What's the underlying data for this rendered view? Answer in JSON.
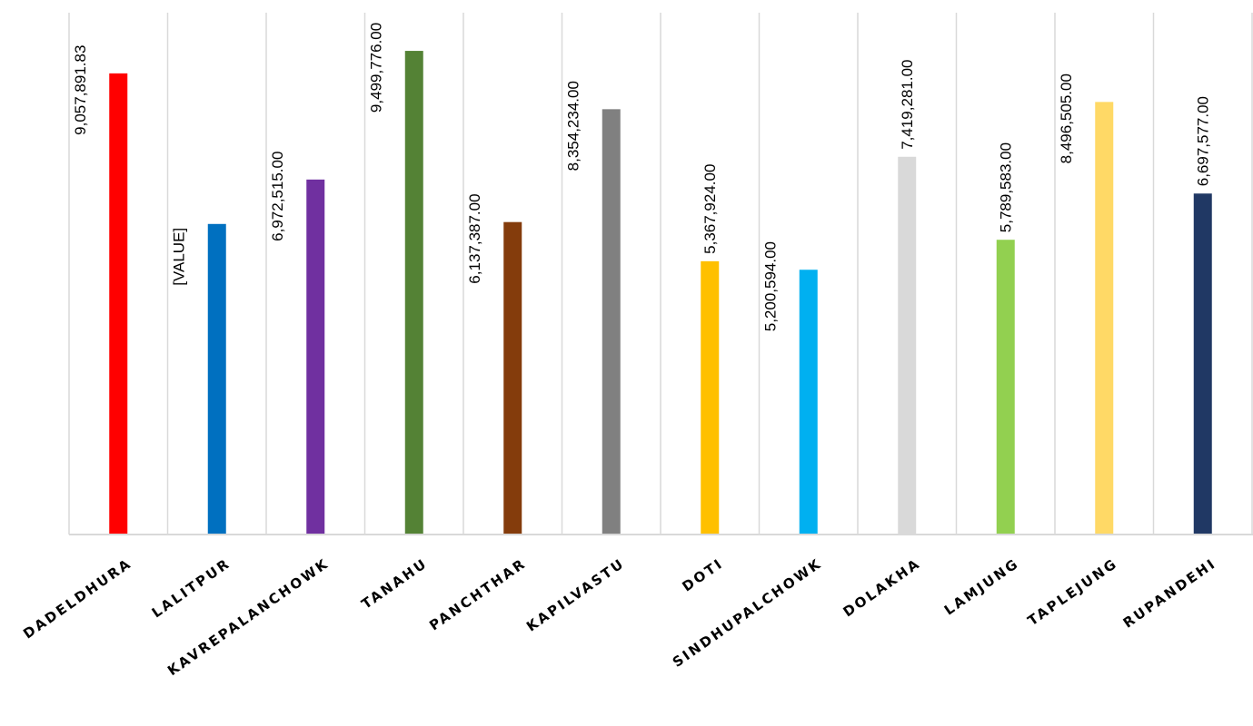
{
  "chart_data": {
    "type": "bar",
    "categories": [
      "DADELDHURA",
      "LALITPUR",
      "KAVREPALANCHOWK",
      "TANAHU",
      "PANCHTHAR",
      "KAPILVASTU",
      "DOTI",
      "SINDHUPALCHOWK",
      "DOLAKHA",
      "LAMJUNG",
      "TAPLEJUNG",
      "RUPANDEHI"
    ],
    "values": [
      9057891.83,
      6100000,
      6972515.0,
      9499776.0,
      6137387.0,
      8354234.0,
      5367924.0,
      5200594.0,
      7419281.0,
      5789583.0,
      8496505.0,
      6697577.0
    ],
    "data_labels": [
      "9,057,891.83",
      "[VALUE]",
      "6,972,515.00",
      "9,499,776.00",
      "6,137,387.00",
      "8,354,234.00",
      "5,367,924.00",
      "5,200,594.00",
      "7,419,281.00",
      "5,789,583.00",
      "8,496,505.00",
      "6,697,577.00"
    ],
    "label_position": [
      "inside",
      "inside",
      "inside",
      "inside",
      "inside",
      "inside",
      "above",
      "inside",
      "above",
      "above",
      "inside",
      "above"
    ],
    "colors": [
      "#FF0000",
      "#0070C0",
      "#7030A0",
      "#548235",
      "#843C0C",
      "#808080",
      "#FFC000",
      "#00B0F0",
      "#D9D9D9",
      "#92D050",
      "#FFD966",
      "#203864"
    ],
    "ylim": [
      0,
      10000000
    ],
    "grid": "vertical",
    "title": "",
    "xlabel": "",
    "ylabel": ""
  }
}
